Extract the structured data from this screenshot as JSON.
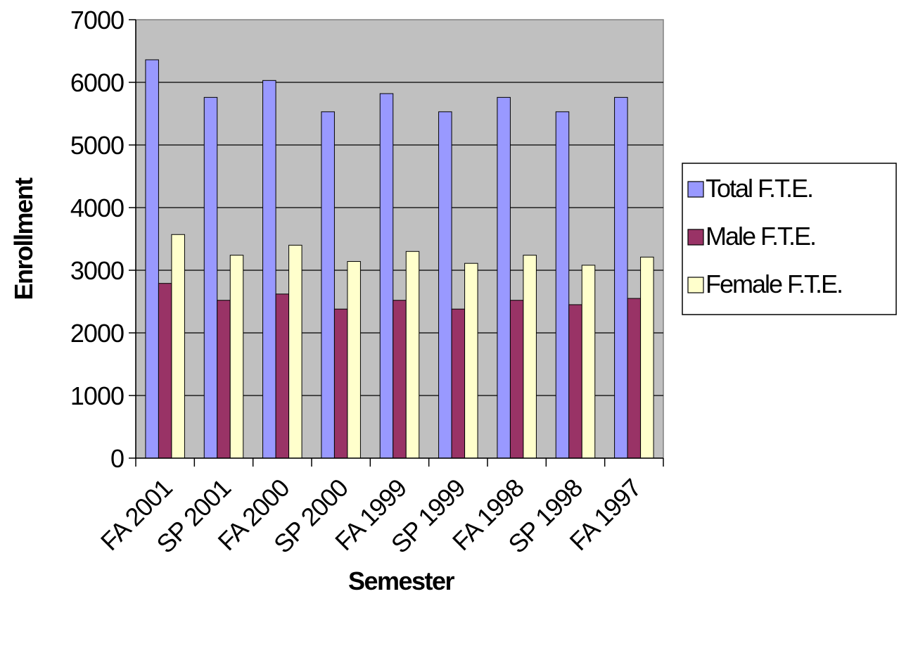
{
  "chart_data": {
    "type": "bar",
    "title": "",
    "xlabel": "Semester",
    "ylabel": "Enrollment",
    "ylim": [
      0,
      7000
    ],
    "yticks": [
      0,
      1000,
      2000,
      3000,
      4000,
      5000,
      6000,
      7000
    ],
    "grid": true,
    "legend_position": "right",
    "categories": [
      "FA 2001",
      "SP 2001",
      "FA 2000",
      "SP 2000",
      "FA 1999",
      "SP 1999",
      "FA 1998",
      "SP 1998",
      "FA 1997"
    ],
    "series": [
      {
        "name": "Total F.T.E.",
        "color": "#9999ff",
        "values": [
          6360,
          5760,
          6030,
          5530,
          5820,
          5530,
          5760,
          5530,
          5760
        ]
      },
      {
        "name": "Male F.T.E.",
        "color": "#993366",
        "values": [
          2790,
          2520,
          2620,
          2380,
          2520,
          2380,
          2520,
          2450,
          2550
        ]
      },
      {
        "name": "Female F.T.E.",
        "color": "#ffffcc",
        "values": [
          3570,
          3240,
          3400,
          3140,
          3300,
          3110,
          3240,
          3080,
          3210
        ]
      }
    ],
    "plot_background": "#c0c0c0"
  }
}
